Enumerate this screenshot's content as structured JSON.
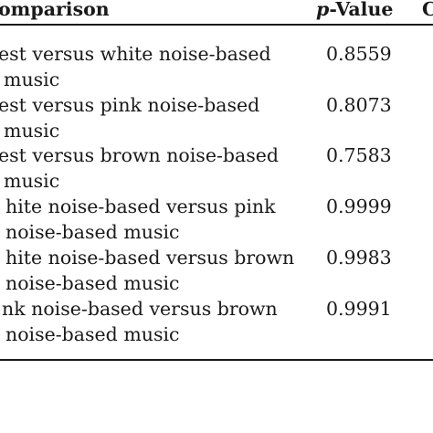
{
  "table": {
    "headers": {
      "comparison": "omparison",
      "pvalue_symbol": "p",
      "pvalue_rest": "-Value",
      "extra": "C"
    },
    "rows": [
      {
        "line1": "est versus white noise-based",
        "line2": "music",
        "pvalue": "0.8559"
      },
      {
        "line1": "est versus pink noise-based",
        "line2": "music",
        "pvalue": "0.8073"
      },
      {
        "line1": "est versus brown noise-based",
        "line2": "music",
        "pvalue": "0.7583"
      },
      {
        "line1": "hite noise-based versus pink",
        "line2": "noise-based music",
        "pvalue": "0.9999"
      },
      {
        "line1": "hite noise-based versus brown",
        "line2": "noise-based music",
        "pvalue": "0.9983"
      },
      {
        "line1": "nk noise-based versus brown",
        "line2": "noise-based music",
        "pvalue": "0.9991"
      }
    ]
  }
}
